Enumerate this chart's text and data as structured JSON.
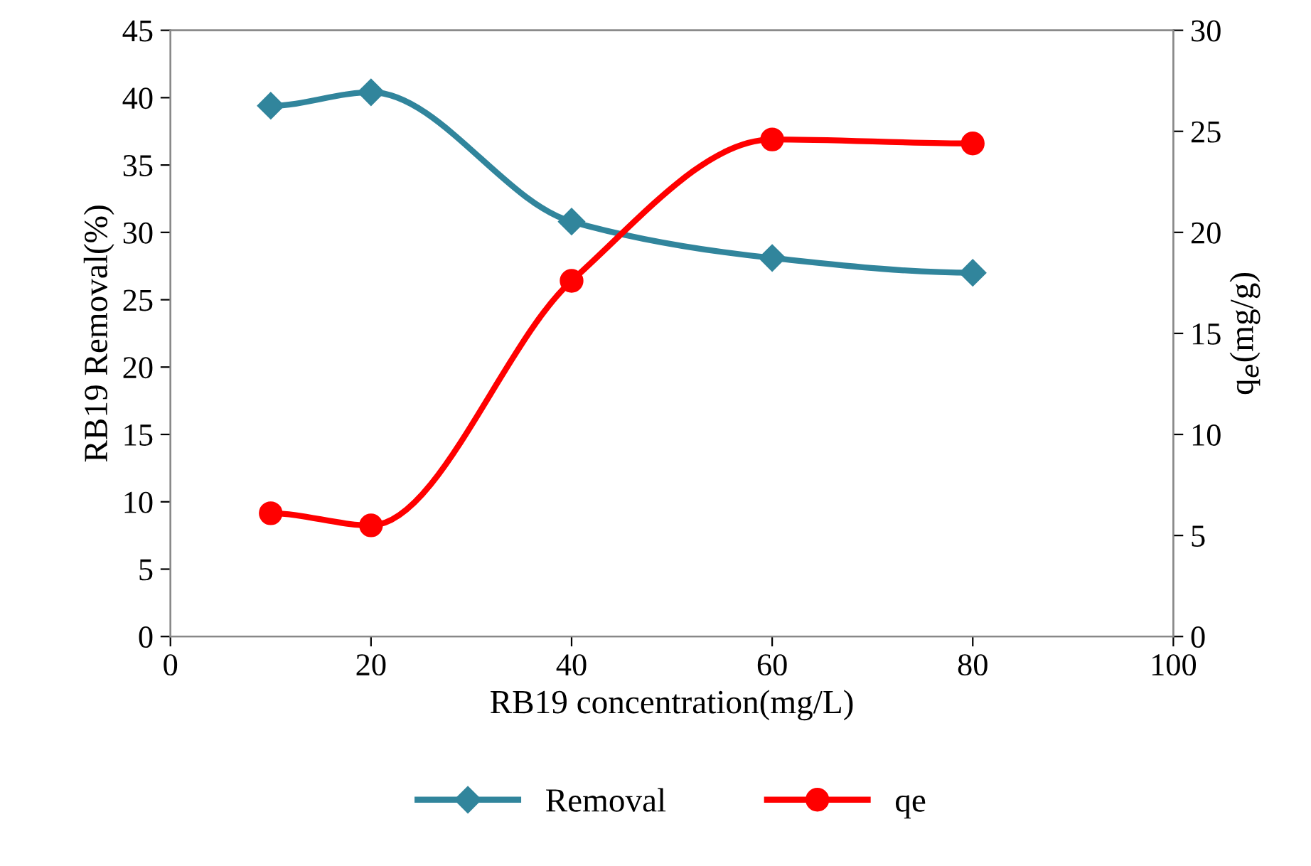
{
  "chart_data": {
    "type": "line",
    "xlabel": "RB19 concentration(mg/L)",
    "ylabel": "RB19 Removal(%)",
    "y2label": "q$_{e}$(mg/g)",
    "x": [
      10,
      20,
      40,
      60,
      80
    ],
    "series": [
      {
        "name": "Removal",
        "color": "#31859c",
        "values": [
          39.4,
          40.4,
          30.8,
          28.1,
          27.0
        ],
        "marker": "diamond"
      },
      {
        "name": "qe",
        "color": "#ff0000",
        "values": [
          6.1,
          5.5,
          17.6,
          24.6,
          24.4
        ],
        "marker": "circle",
        "axis": "y2"
      }
    ],
    "xlim": [
      0,
      100
    ],
    "xticks": [
      0,
      20,
      40,
      60,
      80,
      100
    ],
    "ylim": [
      0,
      45
    ],
    "yticks": [
      0,
      5,
      10,
      15,
      20,
      25,
      30,
      35,
      40,
      45
    ],
    "y2lim": [
      0,
      30
    ],
    "y2ticks": [
      0,
      5,
      10,
      15,
      20,
      25,
      30
    ],
    "legend": "bottom",
    "grid": false,
    "line_style": "solid"
  }
}
